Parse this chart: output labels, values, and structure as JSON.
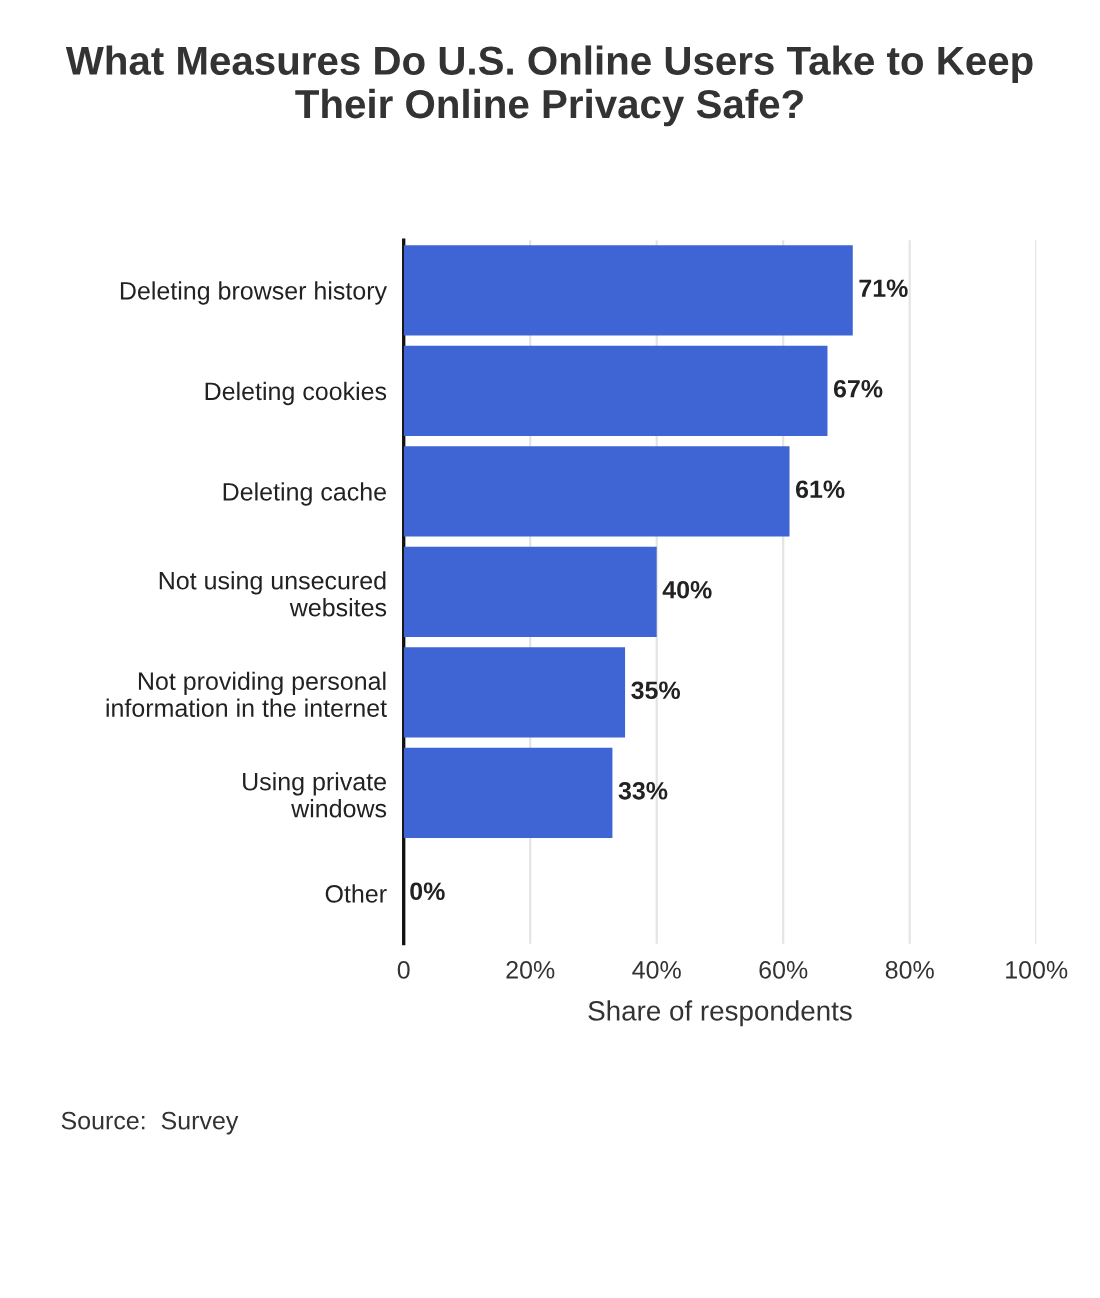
{
  "chart_data": {
    "type": "bar",
    "orientation": "horizontal",
    "title": "What Measures Do U.S. Online Users Take to Keep\nTheir Online Privacy Safe?",
    "xlabel": "Share of respondents",
    "categories": [
      "Deleting browser history",
      "Deleting cookies",
      "Deleting cache",
      "Not using unsecured\nwebsites",
      "Not providing personal\ninformation in the internet",
      "Using private\nwindows",
      "Other"
    ],
    "values": [
      71,
      67,
      61,
      40,
      35,
      33,
      0
    ],
    "value_labels": [
      "71%",
      "67%",
      "61%",
      "40%",
      "35%",
      "33%",
      "0%"
    ],
    "color": "#3f65d4",
    "xlim": [
      0,
      100
    ],
    "xticks": [
      {
        "value": 0,
        "label": "0"
      },
      {
        "value": 20,
        "label": "20%"
      },
      {
        "value": 40,
        "label": "40%"
      },
      {
        "value": 60,
        "label": "60%"
      },
      {
        "value": 80,
        "label": "80%"
      },
      {
        "value": 100,
        "label": "100%"
      }
    ],
    "grid": "x",
    "annotations": [
      "Source:  Survey"
    ]
  }
}
